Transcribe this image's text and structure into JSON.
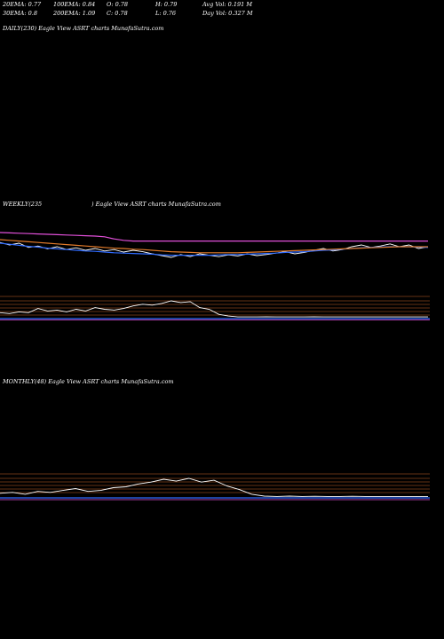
{
  "header": {
    "row1": [
      {
        "key": "ema20",
        "text": "20EMA: 0.77"
      },
      {
        "key": "ema100",
        "text": "100EMA: 0.84"
      },
      {
        "key": "open",
        "text": "O: 0.78"
      },
      {
        "key": "high",
        "text": "H: 0.79"
      },
      {
        "key": "avg_vol",
        "text": "Avg Vol: 0.191 M"
      }
    ],
    "row2": [
      {
        "key": "ema30",
        "text": "30EMA: 0.8"
      },
      {
        "key": "ema200",
        "text": "200EMA: 1.09"
      },
      {
        "key": "close",
        "text": "C: 0.78"
      },
      {
        "key": "low",
        "text": "L: 0.76"
      },
      {
        "key": "day_vol",
        "text": "Day Vol: 0.327 M"
      }
    ]
  },
  "panels": {
    "daily": "DAILY(230) Eagle   View  ASRT charts MunafaSutra.com",
    "weekly_left": "WEEKLY(235",
    "weekly_right": ") Eagle   View  ASRT charts MunafaSutra.com",
    "monthly": "MONTHLY(48) Eagle   View  ASRT charts MunafaSutra.com"
  },
  "colors": {
    "background": "#000000",
    "price": "#ffffff",
    "ema_blue": "#2f6bff",
    "ema_orange": "#e07a2a",
    "ema_pink": "#e04fd8",
    "grid_orange": "#c8642a",
    "ema_white": "#d8d8d8"
  },
  "chart_data": [
    {
      "type": "line",
      "panel": "weekly-price",
      "title": "WEEKLY(235) Eagle View ASRT charts MunafaSutra.com",
      "series": [
        {
          "role": "price",
          "color": "#ffffff",
          "values": [
            0.62,
            0.55,
            0.6,
            0.48,
            0.52,
            0.44,
            0.5,
            0.42,
            0.47,
            0.4,
            0.45,
            0.38,
            0.42,
            0.35,
            0.4,
            0.36,
            0.3,
            0.25,
            0.2,
            0.28,
            0.22,
            0.3,
            0.26,
            0.22,
            0.27,
            0.24,
            0.3,
            0.25,
            0.28,
            0.32,
            0.36,
            0.3,
            0.34,
            0.4,
            0.45,
            0.38,
            0.42,
            0.5,
            0.55,
            0.48,
            0.52,
            0.58,
            0.5,
            0.55,
            0.45,
            0.5
          ]
        },
        {
          "role": "ema-blue",
          "color": "#2f6bff",
          "values": [
            0.6,
            0.57,
            0.54,
            0.51,
            0.49,
            0.46,
            0.44,
            0.42,
            0.4,
            0.38,
            0.37,
            0.35,
            0.33,
            0.32,
            0.31,
            0.3,
            0.29,
            0.27,
            0.26,
            0.26,
            0.26,
            0.26,
            0.26,
            0.27,
            0.28,
            0.28,
            0.29,
            0.3,
            0.31,
            0.32,
            0.34,
            0.35,
            0.36,
            0.38,
            0.4,
            0.41,
            0.43,
            0.45,
            0.47,
            0.48,
            0.49,
            0.5,
            0.5,
            0.5,
            0.49,
            0.48
          ]
        },
        {
          "role": "ema-orange",
          "color": "#e07a2a",
          "values": [
            0.7,
            0.68,
            0.66,
            0.64,
            0.62,
            0.6,
            0.58,
            0.56,
            0.54,
            0.52,
            0.5,
            0.48,
            0.46,
            0.45,
            0.43,
            0.42,
            0.4,
            0.38,
            0.36,
            0.35,
            0.34,
            0.33,
            0.33,
            0.33,
            0.33,
            0.33,
            0.34,
            0.35,
            0.36,
            0.37,
            0.38,
            0.39,
            0.4,
            0.41,
            0.42,
            0.43,
            0.44,
            0.45,
            0.46,
            0.47,
            0.48,
            0.49,
            0.5,
            0.5,
            0.5,
            0.5
          ]
        },
        {
          "role": "ema-pink",
          "color": "#e04fd8",
          "values": [
            0.9,
            0.89,
            0.88,
            0.87,
            0.86,
            0.85,
            0.84,
            0.83,
            0.82,
            0.81,
            0.8,
            0.78,
            0.72,
            0.68,
            0.66,
            0.66,
            0.66,
            0.66,
            0.66,
            0.66,
            0.66,
            0.66,
            0.66,
            0.66,
            0.66,
            0.66,
            0.66,
            0.66,
            0.66,
            0.66,
            0.66,
            0.66,
            0.66,
            0.66,
            0.66,
            0.66,
            0.66,
            0.66,
            0.66,
            0.66,
            0.66,
            0.66,
            0.66,
            0.66,
            0.66,
            0.66
          ]
        }
      ]
    },
    {
      "type": "line",
      "panel": "weekly-volume",
      "series": [
        {
          "role": "volume-line",
          "color": "#ffffff",
          "values": [
            0.3,
            0.25,
            0.35,
            0.3,
            0.55,
            0.4,
            0.45,
            0.35,
            0.5,
            0.4,
            0.6,
            0.5,
            0.45,
            0.55,
            0.7,
            0.8,
            0.75,
            0.85,
            1.0,
            0.9,
            0.95,
            0.6,
            0.5,
            0.2,
            0.1,
            0.05,
            0.05,
            0.05,
            0.06,
            0.05,
            0.05,
            0.05,
            0.05,
            0.06,
            0.05,
            0.05,
            0.05,
            0.05,
            0.05,
            0.05,
            0.05,
            0.05,
            0.05,
            0.05,
            0.05,
            0.05
          ]
        }
      ]
    },
    {
      "type": "line",
      "panel": "monthly",
      "title": "MONTHLY(48) Eagle View ASRT charts MunafaSutra.com",
      "series": [
        {
          "role": "price",
          "color": "#ffffff",
          "values": [
            0.2,
            0.25,
            0.15,
            0.3,
            0.25,
            0.35,
            0.45,
            0.3,
            0.35,
            0.5,
            0.55,
            0.7,
            0.8,
            0.95,
            0.85,
            1.0,
            0.8,
            0.9,
            0.6,
            0.4,
            0.15,
            0.05,
            0.03,
            0.05,
            0.03,
            0.04,
            0.03,
            0.03,
            0.04,
            0.03,
            0.03,
            0.03,
            0.03,
            0.03,
            0.02
          ]
        }
      ]
    }
  ]
}
